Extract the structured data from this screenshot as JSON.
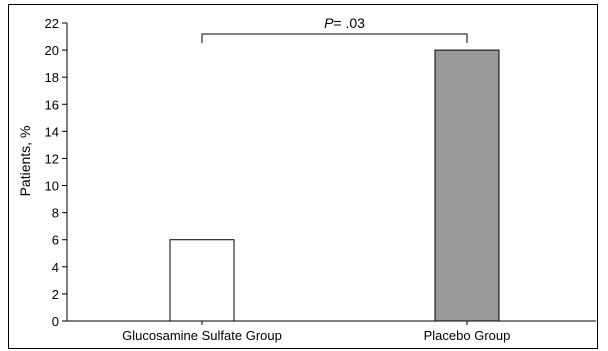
{
  "chart_data": {
    "type": "bar",
    "categories": [
      "Glucosamine Sulfate Group",
      "Placebo Group"
    ],
    "values": [
      6,
      20
    ],
    "bar_colors": [
      "#ffffff",
      "#999999"
    ],
    "ylabel": "Patients, %",
    "xlabel": "",
    "ylim": [
      0,
      22
    ],
    "yticks": [
      0,
      2,
      4,
      6,
      8,
      10,
      12,
      14,
      16,
      18,
      20,
      22
    ],
    "grid": false,
    "annotation": {
      "p_label": "P",
      "p_value": "= .03"
    }
  }
}
